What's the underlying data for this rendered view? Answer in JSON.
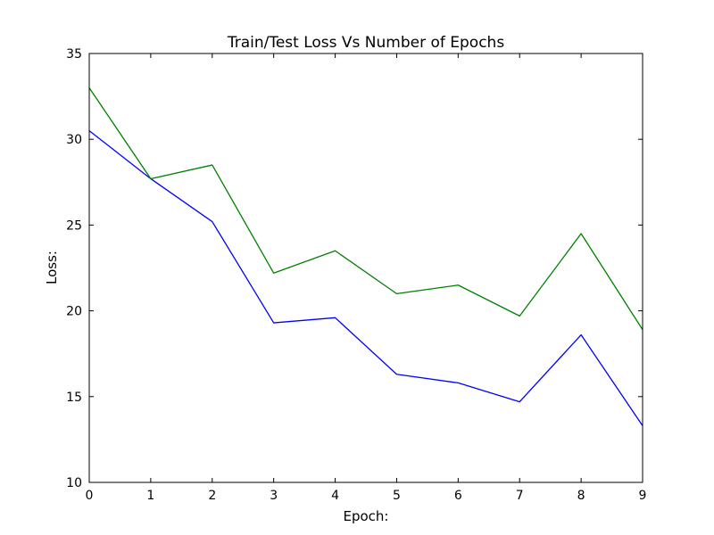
{
  "chart_data": {
    "type": "line",
    "title": "Train/Test Loss Vs Number of Epochs",
    "xlabel": "Epoch:",
    "ylabel": "Loss:",
    "xlim": [
      0,
      9
    ],
    "ylim": [
      10,
      35
    ],
    "xticks": [
      0,
      1,
      2,
      3,
      4,
      5,
      6,
      7,
      8,
      9
    ],
    "yticks": [
      10,
      15,
      20,
      25,
      30,
      35
    ],
    "grid": false,
    "x": [
      0,
      1,
      2,
      3,
      4,
      5,
      6,
      7,
      8,
      9
    ],
    "series": [
      {
        "color": "#0000ff",
        "values": [
          30.5,
          27.7,
          25.2,
          19.3,
          19.6,
          16.3,
          15.8,
          14.7,
          18.6,
          13.3
        ]
      },
      {
        "color": "#008000",
        "values": [
          33.0,
          27.7,
          28.5,
          22.2,
          23.5,
          21.0,
          21.5,
          19.7,
          24.5,
          18.9
        ]
      }
    ]
  }
}
